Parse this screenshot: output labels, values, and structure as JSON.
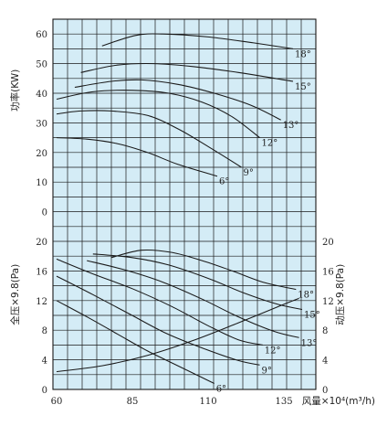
{
  "chart_data": [
    {
      "type": "line",
      "panel": "power",
      "ylabel": "功率(KW)",
      "xlim": [
        60,
        145
      ],
      "ylim": [
        0,
        65
      ],
      "y_ticks": [
        "0",
        "10",
        "20",
        "30",
        "40",
        "50",
        "60"
      ],
      "series": [
        {
          "name": "18°",
          "points": [
            [
              75,
              56
            ],
            [
              86,
              59.5
            ],
            [
              95,
              60
            ],
            [
              110,
              59
            ],
            [
              125,
              57
            ],
            [
              138,
              55
            ]
          ]
        },
        {
          "name": "15°",
          "points": [
            [
              68,
              47
            ],
            [
              80,
              49.5
            ],
            [
              92,
              50
            ],
            [
              105,
              49
            ],
            [
              120,
              47
            ],
            [
              138,
              44
            ]
          ]
        },
        {
          "name": "13°",
          "points": [
            [
              66,
              42
            ],
            [
              78,
              44
            ],
            [
              88,
              44.5
            ],
            [
              100,
              43
            ],
            [
              112,
              40
            ],
            [
              124,
              36
            ],
            [
              134,
              31
            ]
          ]
        },
        {
          "name": "12°",
          "points": [
            [
              60,
              38
            ],
            [
              72,
              40.5
            ],
            [
              85,
              41
            ],
            [
              97,
              40
            ],
            [
              108,
              37
            ],
            [
              118,
              32
            ],
            [
              127,
              25
            ]
          ]
        },
        {
          "name": "9°",
          "points": [
            [
              60,
              33
            ],
            [
              68,
              34
            ],
            [
              78,
              34
            ],
            [
              90,
              32.5
            ],
            [
              100,
              28
            ],
            [
              110,
              22
            ],
            [
              121,
              15
            ]
          ]
        },
        {
          "name": "6°",
          "points": [
            [
              60,
              25
            ],
            [
              70,
              24.5
            ],
            [
              80,
              23
            ],
            [
              90,
              20
            ],
            [
              100,
              16
            ],
            [
              113,
              12
            ]
          ]
        }
      ]
    },
    {
      "type": "line",
      "panel": "pressure",
      "ylabel": "全压×9.8(Pa)",
      "ylabel_right": "动压×9.8(Pa)",
      "xlabel": "风量×10⁴(m³/h)",
      "xlim": [
        60,
        145
      ],
      "ylim": [
        0,
        20
      ],
      "y_ticks": [
        "0",
        "4",
        "8",
        "12",
        "16",
        "20"
      ],
      "y_ticks_right": [
        "0",
        "4",
        "8",
        "12",
        "16",
        "20"
      ],
      "x_ticks": [
        "60",
        "85",
        "110",
        "135"
      ],
      "series": [
        {
          "name": "18°",
          "points": [
            [
              78,
              17.8
            ],
            [
              88,
              18.8
            ],
            [
              98,
              18.5
            ],
            [
              108,
              17.4
            ],
            [
              118,
              16
            ],
            [
              128,
              14.5
            ],
            [
              139,
              13.5
            ]
          ]
        },
        {
          "name": "15°",
          "points": [
            [
              72,
              18.3
            ],
            [
              85,
              17.8
            ],
            [
              97,
              16.8
            ],
            [
              110,
              15
            ],
            [
              122,
              13
            ],
            [
              133,
              11.5
            ],
            [
              141,
              10.8
            ]
          ]
        },
        {
          "name": "13°",
          "points": [
            [
              70,
              17.4
            ],
            [
              82,
              16.2
            ],
            [
              95,
              14.5
            ],
            [
              108,
              12.2
            ],
            [
              120,
              9.8
            ],
            [
              132,
              7.8
            ],
            [
              140,
              7
            ]
          ]
        },
        {
          "name": "12°",
          "points": [
            [
              60,
              17.6
            ],
            [
              72,
              15.6
            ],
            [
              85,
              13.6
            ],
            [
              98,
              11.2
            ],
            [
              110,
              8.6
            ],
            [
              120,
              6.7
            ],
            [
              128,
              6
            ]
          ]
        },
        {
          "name": "9°",
          "points": [
            [
              60,
              15.3
            ],
            [
              72,
              12.8
            ],
            [
              84,
              10.2
            ],
            [
              96,
              7.6
            ],
            [
              108,
              5.6
            ],
            [
              120,
              3.9
            ],
            [
              127,
              3.3
            ]
          ]
        },
        {
          "name": "6°",
          "points": [
            [
              60,
              12
            ],
            [
              70,
              9.8
            ],
            [
              80,
              7.5
            ],
            [
              90,
              5.2
            ],
            [
              100,
              3.2
            ],
            [
              108,
              1.6
            ],
            [
              112,
              0.8
            ]
          ]
        },
        {
          "name": "",
          "points": [
            [
              60,
              2.4
            ],
            [
              75,
              3.2
            ],
            [
              90,
              4.6
            ],
            [
              105,
              6.6
            ],
            [
              120,
              9
            ],
            [
              135,
              11.5
            ],
            [
              140,
              12.3
            ]
          ]
        }
      ]
    }
  ]
}
